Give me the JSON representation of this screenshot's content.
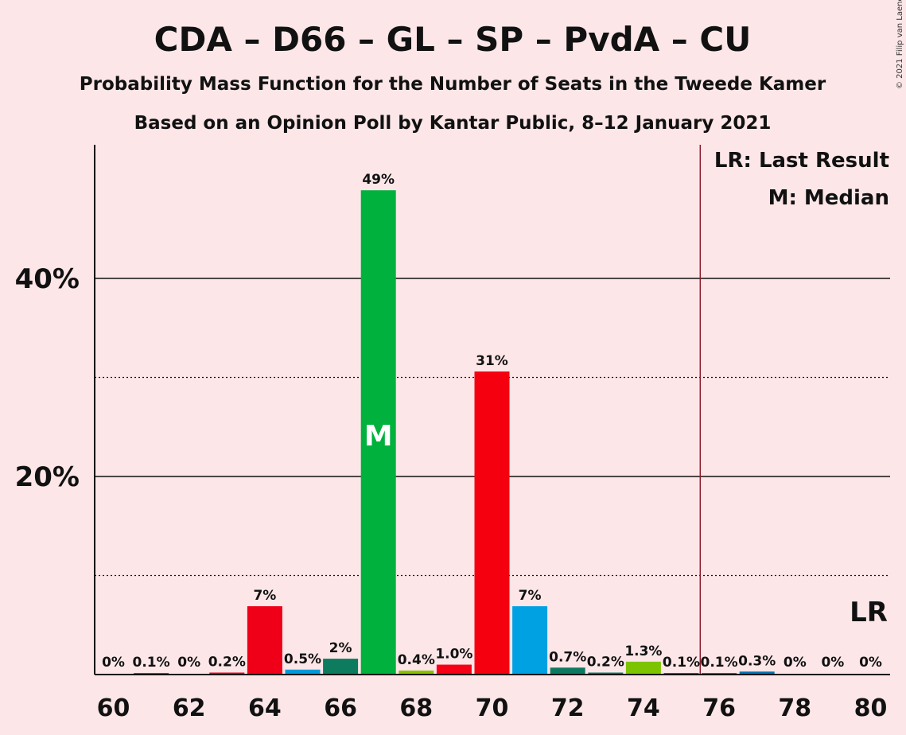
{
  "chart_data": {
    "type": "bar",
    "title": "CDA – D66 – GL – SP – PvdA – CU",
    "subtitle_1": "Probability Mass Function for the Number of Seats in the Tweede Kamer",
    "subtitle_2": "Based on an Opinion Poll by Kantar Public, 8–12 January 2021",
    "copyright": "© 2021 Filip van Laenen",
    "legend": {
      "last_result": "LR: Last Result",
      "median": "M: Median"
    },
    "median_marker": "M",
    "last_result_marker": "LR",
    "x": [
      60,
      61,
      62,
      63,
      64,
      65,
      66,
      67,
      68,
      69,
      70,
      71,
      72,
      73,
      74,
      75,
      76,
      77,
      78,
      79,
      80
    ],
    "values": [
      0,
      0.1,
      0,
      0.2,
      7,
      0.5,
      2,
      49,
      0.4,
      1.0,
      31,
      7,
      0.7,
      0.2,
      1.3,
      0.1,
      0.1,
      0.3,
      0,
      0,
      0
    ],
    "bar_values": [
      0,
      0.05,
      0,
      0.2,
      6.9,
      0.5,
      1.6,
      48.9,
      0.4,
      1.0,
      30.6,
      6.9,
      0.7,
      0.2,
      1.3,
      0.05,
      0.05,
      0.3,
      0,
      0,
      0
    ],
    "labels": [
      "0%",
      "0.1%",
      "0%",
      "0.2%",
      "7%",
      "0.5%",
      "2%",
      "49%",
      "0.4%",
      "1.0%",
      "31%",
      "7%",
      "0.7%",
      "0.2%",
      "1.3%",
      "0.1%",
      "0.1%",
      "0.3%",
      "0%",
      "0%",
      "0%"
    ],
    "colors": [
      "#00A0E2",
      "#0074B0",
      "#0E7B61",
      "#E8001F",
      "#F00018",
      "#009ADB",
      "#0D7C5E",
      "#00B13D",
      "#88C000",
      "#F50014",
      "#F5000F",
      "#00A1E3",
      "#0D7961",
      "#0C7862",
      "#7DC400",
      "#0A7A5F",
      "#0077B8",
      "#0073B2",
      "#00A0E2",
      "#00A0E2",
      "#00A0E2"
    ],
    "median_x": 67,
    "last_result_x": 75.5,
    "x_ticks": [
      "60",
      "62",
      "64",
      "66",
      "68",
      "70",
      "72",
      "74",
      "76",
      "78",
      "80"
    ],
    "y_ticks": [
      "20%",
      "40%"
    ],
    "ylim": [
      0,
      54
    ],
    "grid_major": [
      20,
      40
    ],
    "grid_minor": [
      10,
      30
    ],
    "axis_color": "#111111",
    "lr_line_color": "#8B1A2B"
  }
}
